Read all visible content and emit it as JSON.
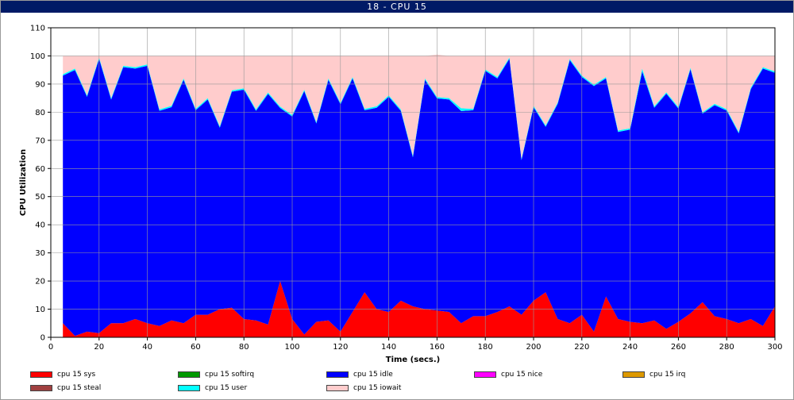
{
  "window": {
    "title": "18 - CPU 15"
  },
  "chart_data": {
    "type": "area",
    "stacked": true,
    "title": "18 - CPU 15",
    "xlabel": "Time (secs.)",
    "ylabel": "CPU Utilization",
    "xlim": [
      0,
      300
    ],
    "ylim": [
      0,
      110
    ],
    "xticks": [
      0,
      20,
      40,
      60,
      80,
      100,
      120,
      140,
      160,
      180,
      200,
      220,
      240,
      260,
      280,
      300
    ],
    "yticks": [
      0,
      10,
      20,
      30,
      40,
      50,
      60,
      70,
      80,
      90,
      100,
      110
    ],
    "grid": true,
    "legend_position": "bottom",
    "x": [
      5,
      10,
      15,
      20,
      25,
      30,
      35,
      40,
      45,
      50,
      55,
      60,
      65,
      70,
      75,
      80,
      85,
      90,
      95,
      100,
      105,
      110,
      115,
      120,
      125,
      130,
      135,
      140,
      145,
      150,
      155,
      160,
      165,
      170,
      175,
      180,
      185,
      190,
      195,
      200,
      205,
      210,
      215,
      220,
      225,
      230,
      235,
      240,
      245,
      250,
      255,
      260,
      265,
      270,
      275,
      280,
      285,
      290,
      295,
      300
    ],
    "series": [
      {
        "name": "cpu 15 sys",
        "color": "#ff0000",
        "values": [
          5,
          0.5,
          2,
          1.5,
          5,
          5,
          6.5,
          5,
          4,
          6,
          5,
          8,
          8,
          10,
          10.5,
          6.5,
          6,
          4.5,
          20,
          6.5,
          1,
          5.5,
          6,
          2,
          9,
          16,
          10,
          9,
          13,
          11,
          10,
          9.5,
          9,
          5,
          7.5,
          7.5,
          9,
          11,
          8,
          13,
          16,
          6.5,
          5,
          8,
          2,
          14.5,
          6.5,
          5.5,
          5,
          6,
          3,
          5.5,
          8.5,
          12.5,
          7.5,
          6.5,
          5,
          6.5,
          4,
          11
        ]
      },
      {
        "name": "cpu 15 softirq",
        "color": "#009900",
        "values": [
          0,
          0,
          0,
          0,
          0,
          0,
          0,
          0,
          0,
          0,
          0,
          0,
          0,
          0,
          0,
          0,
          0,
          0,
          0,
          0,
          0,
          0,
          0,
          0,
          0,
          0,
          0,
          0,
          0,
          0,
          0,
          0,
          0,
          0,
          0,
          0,
          0,
          0,
          0,
          0,
          0,
          0,
          0,
          0,
          0,
          0,
          0,
          0,
          0,
          0,
          0,
          0,
          0,
          0,
          0,
          0,
          0,
          0,
          0,
          0
        ]
      },
      {
        "name": "cpu 15 idle",
        "color": "#0000ff",
        "values": [
          88,
          94.5,
          83.5,
          97.5,
          79.5,
          91,
          89,
          91.5,
          76.5,
          75.8,
          86.5,
          72.7,
          76.5,
          64.5,
          76.8,
          81.5,
          74.5,
          82,
          61.5,
          72,
          86.5,
          70.5,
          85.5,
          80.8,
          83,
          64.7,
          71.6,
          76.5,
          67.5,
          53,
          81.5,
          75.4,
          75.5,
          75.4,
          73.2,
          87.2,
          83,
          88,
          55,
          68.8,
          58.8,
          76.5,
          93.5,
          84.5,
          87.3,
          77.5,
          66.5,
          68.3,
          89.5,
          75.6,
          83.6,
          75.8,
          86.8,
          67,
          75,
          74.1,
          67.5,
          81.7,
          91.5,
          83
        ]
      },
      {
        "name": "cpu 15 nice",
        "color": "#ff00ff",
        "values": [
          0,
          0,
          0,
          0,
          0,
          0,
          0,
          0,
          0,
          0,
          0,
          0,
          0,
          0,
          0,
          0,
          0,
          0,
          0,
          0,
          0,
          0,
          0,
          0,
          0,
          0,
          0,
          0,
          0,
          0,
          0,
          0,
          0,
          0,
          0,
          0,
          0,
          0,
          0,
          0,
          0,
          0,
          0,
          0,
          0,
          0,
          0,
          0,
          0,
          0,
          0,
          0,
          0,
          0,
          0,
          0,
          0,
          0,
          0,
          0
        ]
      },
      {
        "name": "cpu 15 irq",
        "color": "#dd9900",
        "values": [
          0,
          0,
          0,
          0,
          0,
          0,
          0,
          0,
          0,
          0,
          0,
          0,
          0,
          0,
          0,
          0,
          0,
          0,
          0,
          0,
          0,
          0,
          0,
          0,
          0,
          0,
          0,
          0,
          0,
          0,
          0,
          0,
          0,
          0,
          0,
          0,
          0,
          0,
          0,
          0,
          0,
          0,
          0,
          0,
          0,
          0,
          0,
          0,
          0,
          0,
          0,
          0,
          0,
          0,
          0,
          0,
          0,
          0,
          0,
          0
        ]
      },
      {
        "name": "cpu 15 steal",
        "color": "#a04040",
        "values": [
          0,
          0,
          0,
          0,
          0,
          0,
          0,
          0,
          0,
          0,
          0,
          0,
          0,
          0,
          0,
          0,
          0,
          0,
          0,
          0,
          0,
          0,
          0,
          0,
          0,
          0,
          0,
          0,
          0,
          0,
          0,
          0,
          0,
          0,
          0,
          0,
          0,
          0,
          0,
          0,
          0,
          0,
          0,
          0,
          0,
          0,
          0,
          0,
          0,
          0,
          0,
          0,
          0,
          0,
          0,
          0,
          0,
          0,
          0,
          0
        ]
      },
      {
        "name": "cpu 15 user",
        "color": "#00ffff",
        "values": [
          0.5,
          0.5,
          0.5,
          0.5,
          0.5,
          0.5,
          0.5,
          0.5,
          0.5,
          0.5,
          0.5,
          0.5,
          0.5,
          0.5,
          0.5,
          0.5,
          0.5,
          0.5,
          0.5,
          0.5,
          0.5,
          0.5,
          0.5,
          0.5,
          0.5,
          0.5,
          0.5,
          0.5,
          0.5,
          0.5,
          0.5,
          0.5,
          0.5,
          1,
          0.5,
          0.5,
          0.5,
          0.5,
          0.5,
          0.5,
          0.5,
          0.5,
          0.5,
          0.5,
          0.5,
          0.5,
          0.5,
          0.5,
          1,
          0.5,
          0.5,
          0.5,
          0.5,
          0.5,
          0.5,
          0.5,
          0.5,
          0.5,
          0.5,
          0.5
        ]
      },
      {
        "name": "cpu 15 iowait",
        "color": "#ffcccc",
        "values": [
          6.5,
          4.5,
          14,
          0.5,
          15,
          3.5,
          4,
          3,
          19,
          17.7,
          8,
          18.8,
          15,
          25,
          12.2,
          11.5,
          19,
          13,
          18,
          21,
          12,
          23.5,
          8,
          16.7,
          7.5,
          18.8,
          17.9,
          14,
          19,
          35.5,
          8,
          15.1,
          15,
          18.6,
          18.8,
          4.8,
          7.5,
          0.5,
          36.5,
          17.7,
          24.7,
          16.5,
          1,
          7,
          10.2,
          7.5,
          26.5,
          25.7,
          4.5,
          17.9,
          12.9,
          18.2,
          4.2,
          20,
          17,
          18.9,
          27,
          11.3,
          4,
          5.5
        ]
      }
    ]
  }
}
